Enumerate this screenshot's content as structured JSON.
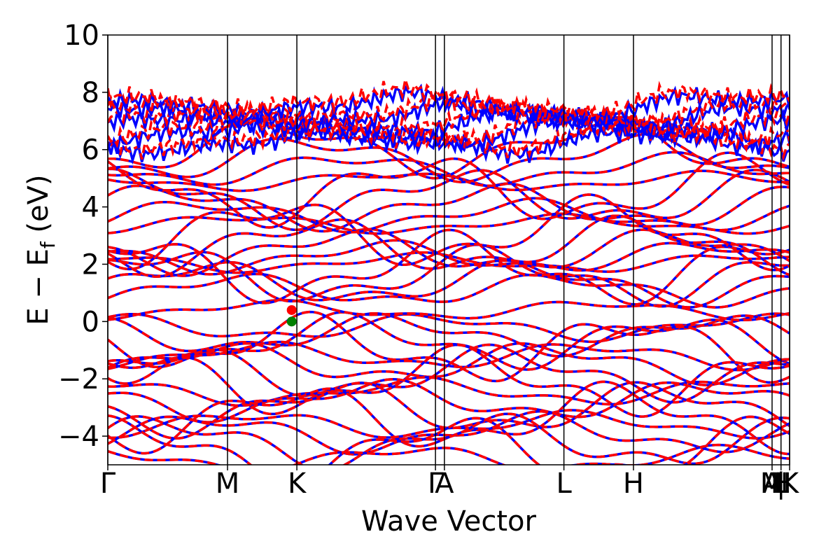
{
  "chart_data": {
    "type": "line",
    "title": "",
    "xlabel": "Wave Vector",
    "ylabel": "E − E_f (eV)",
    "ylabel_parts": {
      "main": "E − E",
      "sub": "f",
      "unit": " (eV)"
    },
    "ylim": [
      -5,
      10
    ],
    "yticks": [
      -4,
      -2,
      0,
      2,
      4,
      6,
      8,
      10
    ],
    "ytick_labels": [
      "−4",
      "−2",
      "0",
      "2",
      "4",
      "6",
      "8",
      "10"
    ],
    "xlim": [
      0,
      1
    ],
    "high_symmetry_points": [
      {
        "label": "Γ",
        "x": 0.0
      },
      {
        "label": "M",
        "x": 0.1756
      },
      {
        "label": "K",
        "x": 0.2773
      },
      {
        "label": "Γ",
        "x": 0.4806
      },
      {
        "label": "A",
        "x": 0.4937
      },
      {
        "label": "L",
        "x": 0.669
      },
      {
        "label": "H",
        "x": 0.771
      },
      {
        "label": "A",
        "x": 0.9743
      },
      {
        "label": "|",
        "x": 0.9743
      },
      {
        "label": "L",
        "x": 0.9874
      },
      {
        "label": "M",
        "x": 0.9874
      },
      {
        "label": "|",
        "x": 0.9874
      },
      {
        "label": "H",
        "x": 1.0
      },
      {
        "label": "K",
        "x": 1.0
      }
    ],
    "xtick_labels_rendered": [
      "Γ",
      "M",
      "K",
      "Γ",
      "A",
      "L",
      "H",
      "A",
      "M",
      "|",
      "H",
      "L",
      "K"
    ],
    "series": [
      {
        "color": "#0000ff",
        "linestyle": "solid"
      },
      {
        "color": "#ff0000",
        "linestyle": "dashed"
      }
    ],
    "band_gap_markers": [
      {
        "label": "CBM",
        "x": 0.2697,
        "y": 0.4,
        "color": "#ff0000"
      },
      {
        "label": "VBM",
        "x": 0.2697,
        "y": 0.0,
        "color": "#008000"
      }
    ],
    "valence_band_centers": [
      -0.2,
      -0.45,
      -0.7,
      -0.95,
      -1.2,
      -1.45,
      -1.8,
      -2.1,
      -2.45,
      -2.75,
      -3.05,
      -3.35,
      -3.6,
      -3.9,
      -4.2,
      -4.5,
      -4.8
    ],
    "conduction_band_centers": [
      0.4,
      1.1,
      1.35,
      1.6,
      1.85,
      2.05,
      2.25,
      2.45,
      2.65,
      3.1,
      3.4,
      3.7,
      4.0,
      4.3,
      4.6,
      4.9,
      5.3,
      5.7,
      6.1
    ],
    "upper_noisy_bands": [
      6.3,
      6.6,
      6.9,
      7.2,
      7.5
    ]
  }
}
